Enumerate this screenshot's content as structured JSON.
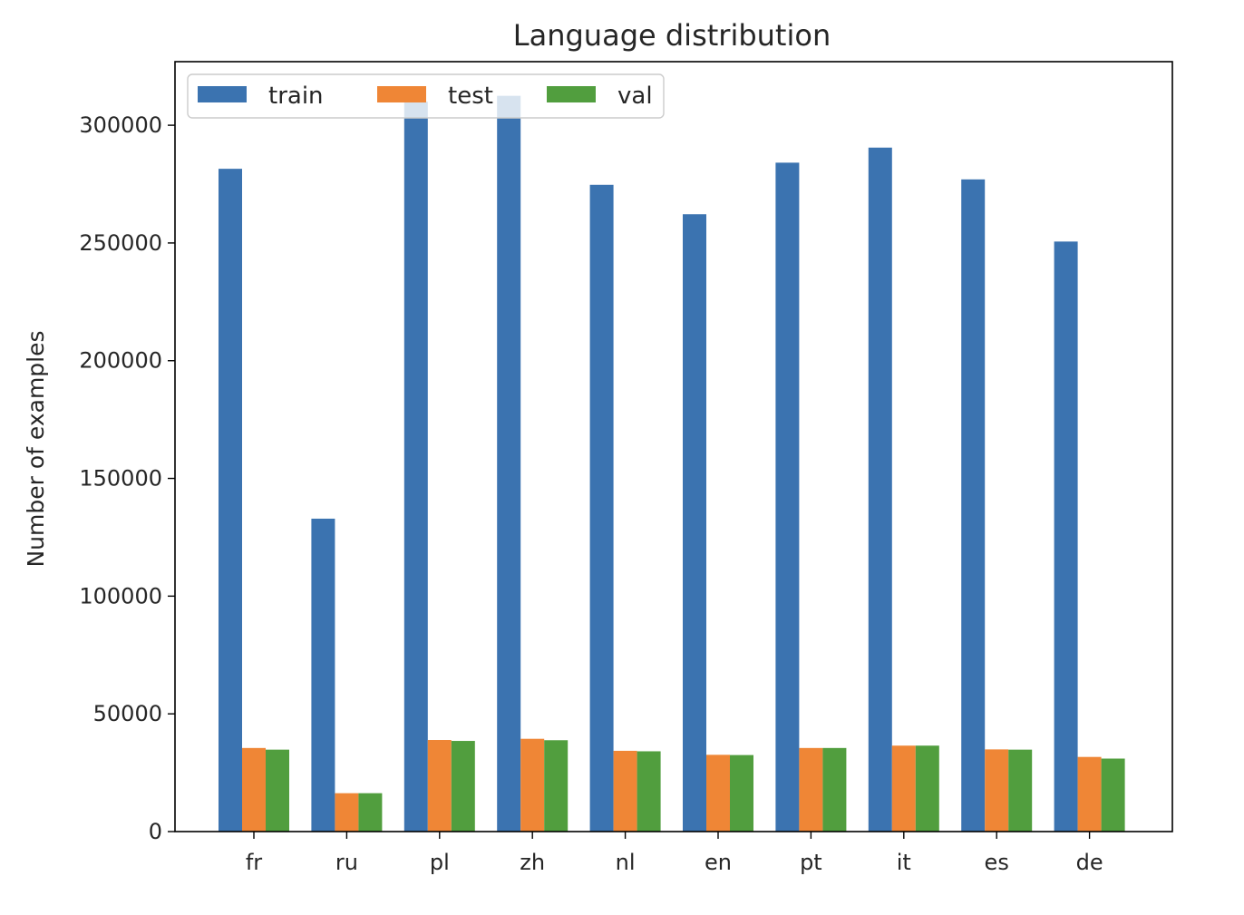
{
  "chart_data": {
    "type": "bar",
    "title": "Language distribution",
    "xlabel": "",
    "ylabel": "Number of examples",
    "ylim": [
      0,
      327000
    ],
    "yticks": [
      0,
      50000,
      100000,
      150000,
      200000,
      250000,
      300000
    ],
    "categories": [
      "fr",
      "ru",
      "pl",
      "zh",
      "nl",
      "en",
      "pt",
      "it",
      "es",
      "de"
    ],
    "series": [
      {
        "name": "train",
        "color": "#3b73b0",
        "values": [
          281500,
          132900,
          310000,
          312500,
          274700,
          262200,
          284100,
          290500,
          277000,
          250600
        ]
      },
      {
        "name": "test",
        "color": "#ef8636",
        "values": [
          35500,
          16300,
          38900,
          39400,
          34300,
          32600,
          35500,
          36500,
          34900,
          31700
        ]
      },
      {
        "name": "val",
        "color": "#519e3e",
        "values": [
          34800,
          16300,
          38500,
          38800,
          34100,
          32500,
          35500,
          36500,
          34800,
          31000
        ]
      }
    ],
    "grid": false,
    "legend": {
      "placement": "top-left",
      "columns": 3
    }
  }
}
